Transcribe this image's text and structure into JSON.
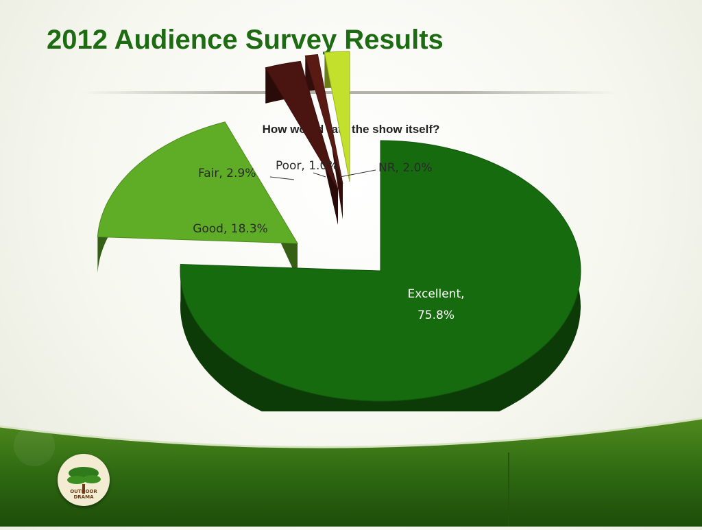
{
  "slide": {
    "title": "2012 Audience Survey Results"
  },
  "logo": {
    "line1": "OUTDOOR",
    "line2": "DRAMA"
  },
  "chart_data": {
    "type": "pie",
    "title": "How would rate the show itself?",
    "categories": [
      "Excellent",
      "Good",
      "Fair",
      "Poor",
      "NR"
    ],
    "values": [
      75.8,
      18.3,
      2.9,
      1.0,
      2.0
    ],
    "labels": [
      "Excellent,\n75.8%",
      "Good, 18.3%",
      "Fair, 2.9%",
      "Poor, 1.0%",
      "NR, 2.0%"
    ],
    "colors": [
      "#166b0f",
      "#5fad26",
      "#4a1410",
      "#5a1a14",
      "#c2e02c"
    ],
    "exploded": true,
    "three_d": true
  }
}
